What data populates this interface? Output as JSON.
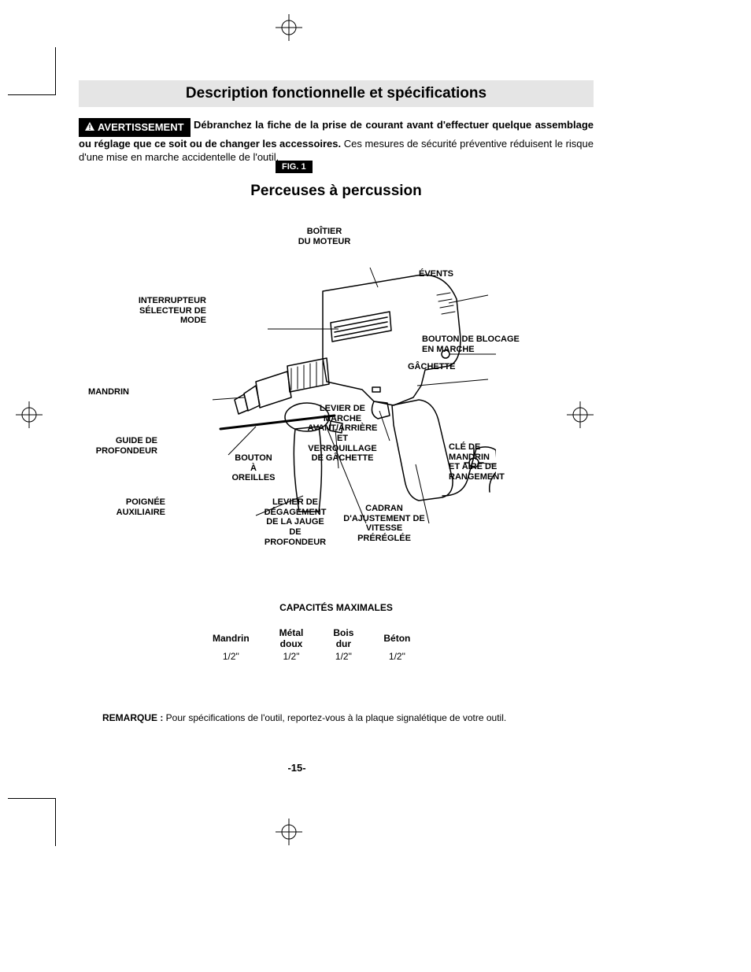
{
  "page": {
    "title": "Description fonctionnelle et spécifications",
    "fig_label": "FIG. 1",
    "subtitle": "Perceuses à percussion",
    "page_number": "-15-"
  },
  "warning": {
    "label": "AVERTISSEMENT",
    "bold_text": "Débranchez la fiche de la prise de courant avant d'effectuer quelque assemblage ou réglage que ce soit ou de changer les accessoires.",
    "body_text": " Ces mesures de sécurité préventive réduisent le risque d'une mise en marche accidentelle de l'outil."
  },
  "callouts": {
    "boitier": "BOÎTIER\nDU MOTEUR",
    "events": "ÉVENTS",
    "interrupteur": "INTERRUPTEUR\nSÉLECTEUR DE\nMODE",
    "bouton_blocage": "BOUTON DE BLOCAGE\nEN MARCHE",
    "gachette": "GÂCHETTE",
    "mandrin": "MANDRIN",
    "levier_marche": "LEVIER DE\nMARCHE\nAVANT/ARRIÈRE\nET\nVERROUILLAGE\nDE GÂCHETTE",
    "guide": "GUIDE DE\nPROFONDEUR",
    "bouton_oreilles": "BOUTON\nÀ\nOREILLES",
    "cle_mandrin": "CLÉ DE\nMANDRIN\nET AIRE DE\nRANGEMENT",
    "poignee": "POIGNÉE\nAUXILIAIRE",
    "levier_degagement": "LEVIER DE\nDÉGAGEMENT\nDE LA JAUGE\nDE\nPROFONDEUR",
    "cadran": "CADRAN\nD'AJUSTEMENT DE\nVITESSE\nPRÉRÉGLÉE"
  },
  "capacities": {
    "title": "CAPACITÉS MAXIMALES",
    "headers": [
      "Mandrin",
      "Métal\ndoux",
      "Bois\ndur",
      "Béton"
    ],
    "row": [
      "1/2\"",
      "1/2\"",
      "1/2\"",
      "1/2\""
    ]
  },
  "note": {
    "label": "REMARQUE :",
    "text": " Pour spécifications de l'outil, reportez-vous à la plaque signalétique de votre outil."
  },
  "colors": {
    "title_bg": "#e5e5e5",
    "black": "#000000",
    "white": "#ffffff"
  }
}
